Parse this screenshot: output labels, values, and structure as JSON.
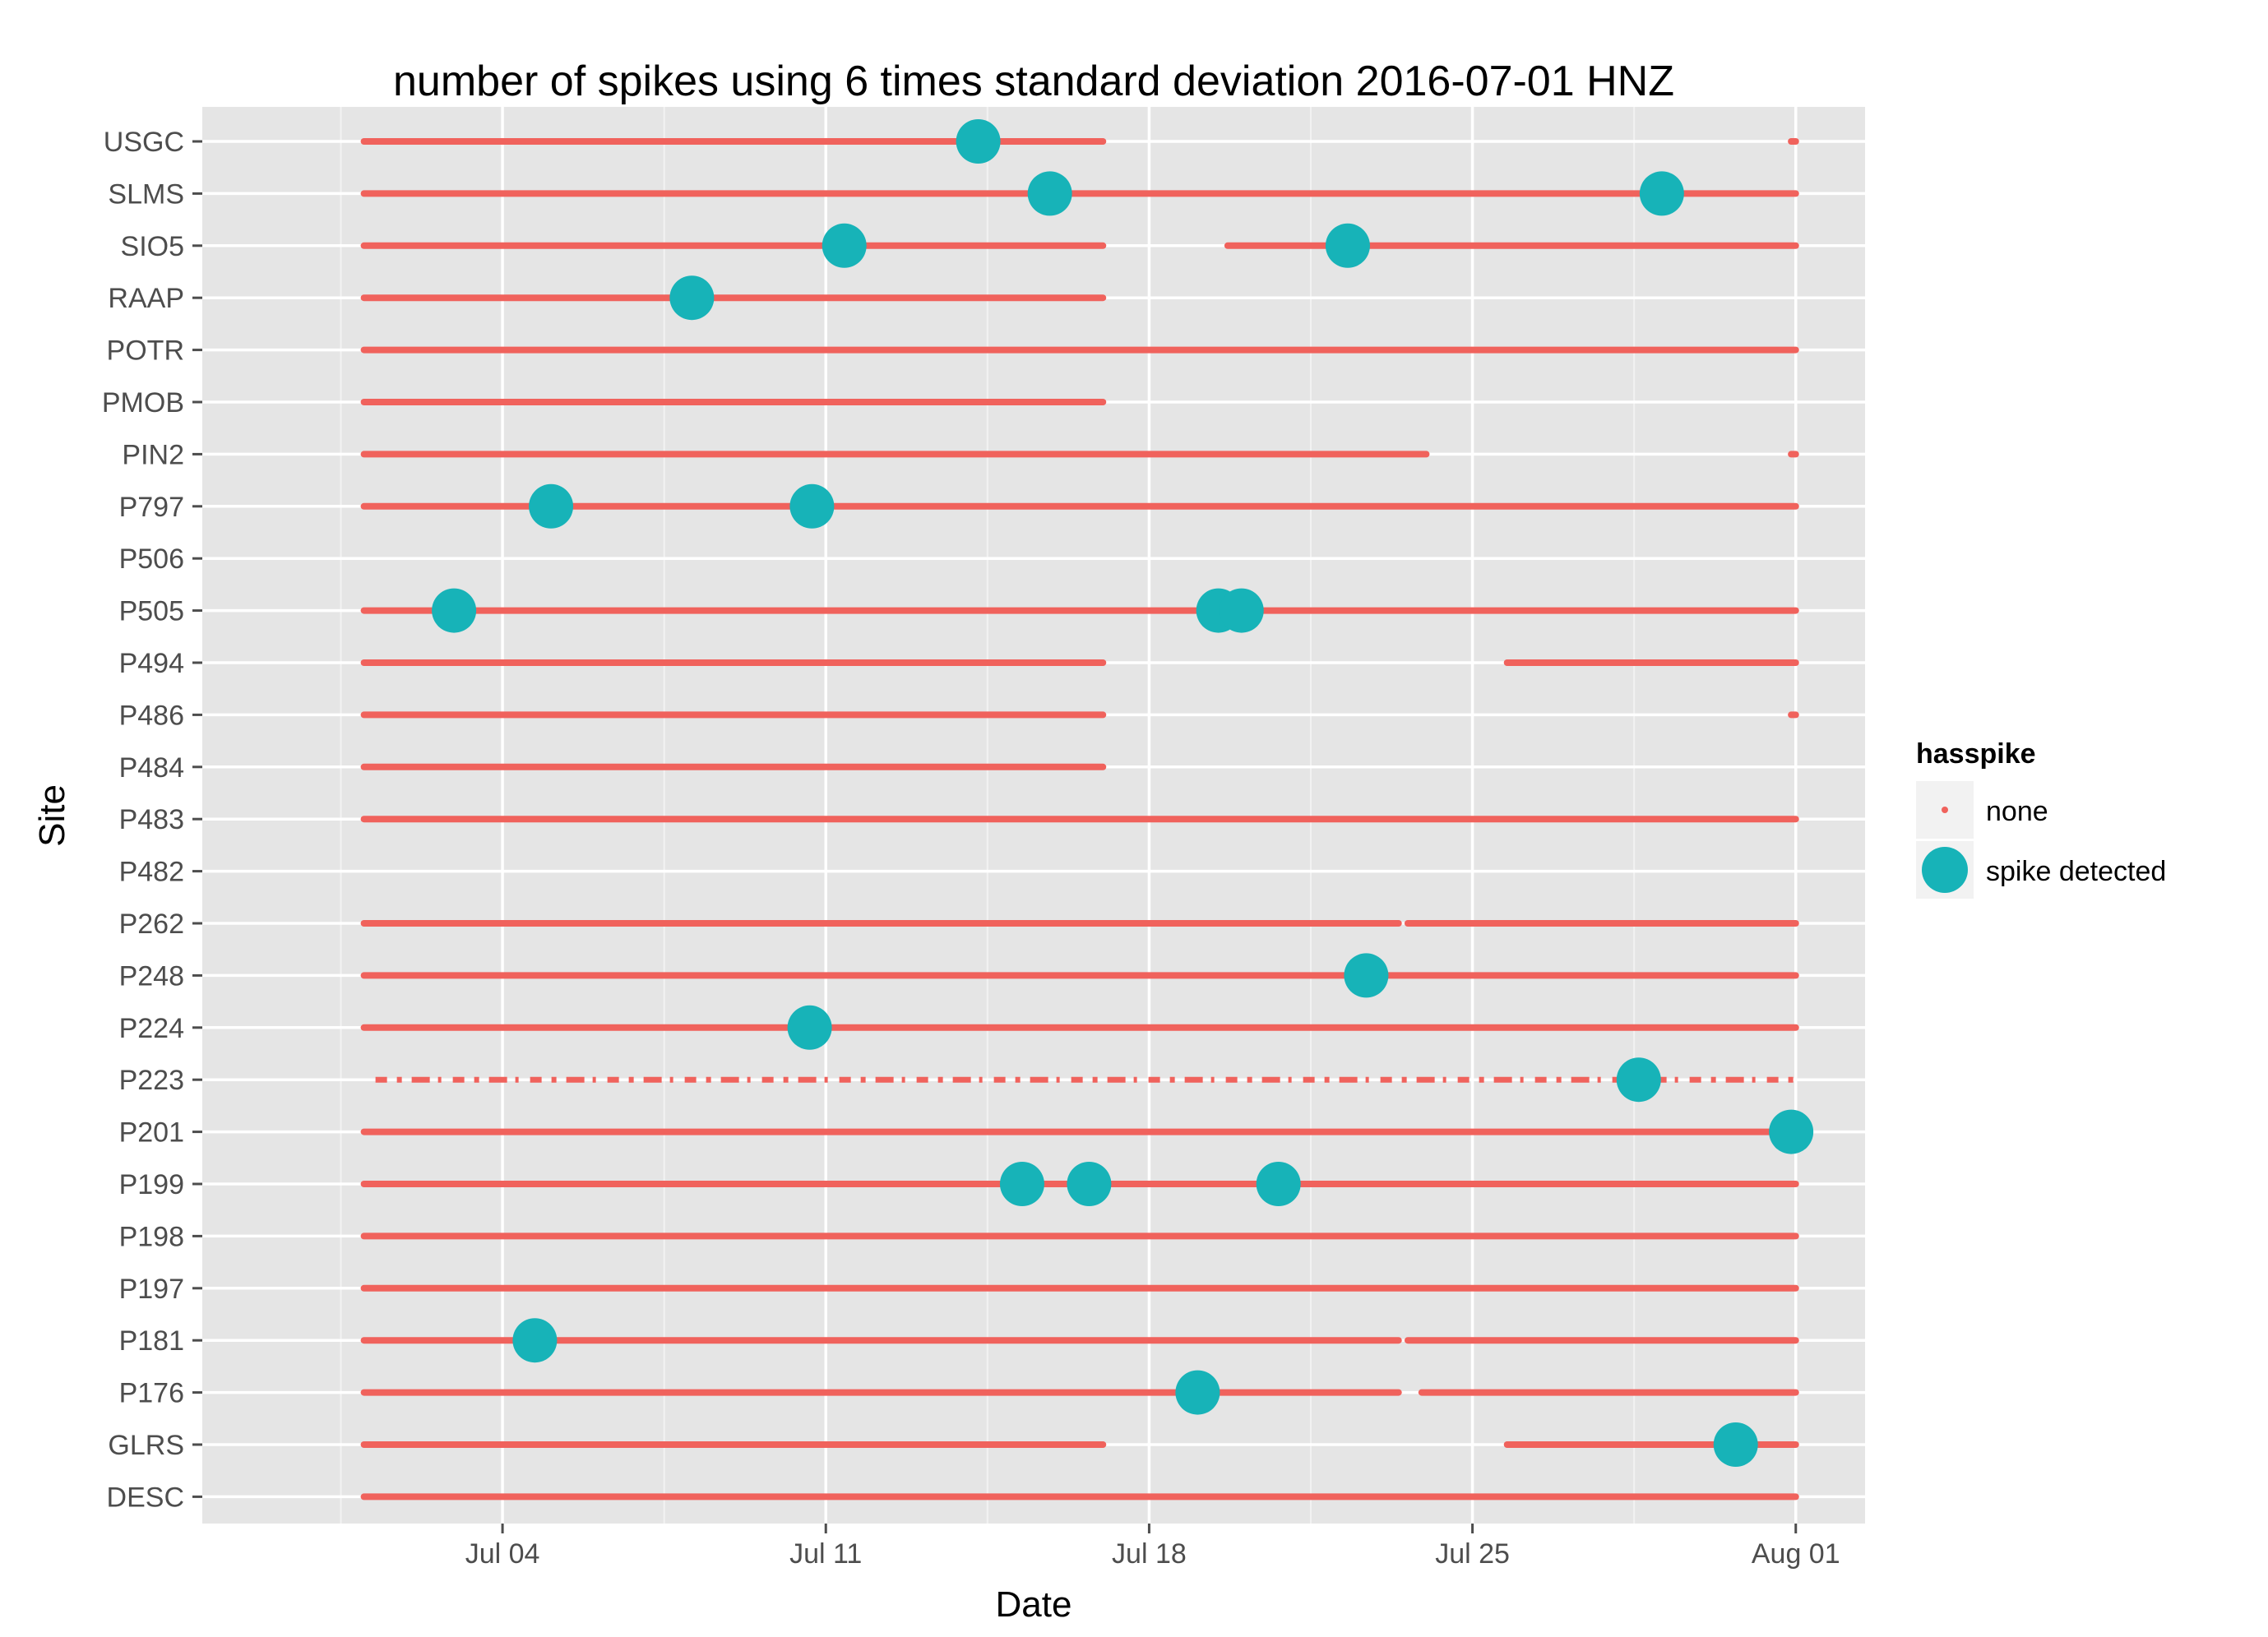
{
  "chart_data": {
    "type": "scatter",
    "title": "number of spikes using  6 times standard deviation 2016-07-01 HNZ",
    "xlabel": "Date",
    "ylabel": "Site",
    "xlim": [
      -3.5,
      32.5
    ],
    "x_unit": "days since 2016-07-01",
    "x_ticks": [
      {
        "value": 3,
        "label": "Jul 04"
      },
      {
        "value": 10,
        "label": "Jul 11"
      },
      {
        "value": 17,
        "label": "Jul 18"
      },
      {
        "value": 24,
        "label": "Jul 25"
      },
      {
        "value": 31,
        "label": "Aug 01"
      }
    ],
    "sites": [
      "USGC",
      "SLMS",
      "SIO5",
      "RAAP",
      "POTR",
      "PMOB",
      "PIN2",
      "P797",
      "P506",
      "P505",
      "P494",
      "P486",
      "P484",
      "P483",
      "P482",
      "P262",
      "P248",
      "P224",
      "P223",
      "P201",
      "P199",
      "P198",
      "P197",
      "P181",
      "P176",
      "GLRS",
      "DESC"
    ],
    "colors": {
      "none": "#f0625c",
      "spike": "#17b3b8",
      "panel": "#e5e5e5",
      "grid_major": "#ffffff",
      "grid_minor": "#f2f2f2"
    },
    "legend": {
      "title": "hasspike",
      "entries": [
        {
          "key": "none",
          "label": "none"
        },
        {
          "key": "spike",
          "label": "spike detected"
        }
      ]
    },
    "series": [
      {
        "name": "none",
        "type": "segments",
        "values": [
          {
            "site": "USGC",
            "segments": [
              [
                0,
                16
              ],
              [
                30.9,
                31
              ]
            ]
          },
          {
            "site": "SLMS",
            "segments": [
              [
                0,
                31
              ]
            ]
          },
          {
            "site": "SIO5",
            "segments": [
              [
                0,
                16
              ],
              [
                18.7,
                31
              ]
            ]
          },
          {
            "site": "RAAP",
            "segments": [
              [
                0,
                16
              ]
            ]
          },
          {
            "site": "POTR",
            "segments": [
              [
                0,
                31
              ]
            ]
          },
          {
            "site": "PMOB",
            "segments": [
              [
                0,
                16
              ]
            ]
          },
          {
            "site": "PIN2",
            "segments": [
              [
                0,
                23
              ],
              [
                30.9,
                31
              ]
            ]
          },
          {
            "site": "P797",
            "segments": [
              [
                0,
                31
              ]
            ]
          },
          {
            "site": "P505",
            "segments": [
              [
                0,
                31
              ]
            ]
          },
          {
            "site": "P494",
            "segments": [
              [
                0,
                16
              ],
              [
                24.75,
                31
              ]
            ]
          },
          {
            "site": "P486",
            "segments": [
              [
                0,
                16
              ],
              [
                30.9,
                31
              ]
            ]
          },
          {
            "site": "P484",
            "segments": [
              [
                0,
                16
              ]
            ]
          },
          {
            "site": "P483",
            "segments": [
              [
                0,
                31
              ]
            ]
          },
          {
            "site": "P262",
            "segments": [
              [
                0,
                22.4
              ],
              [
                22.6,
                31
              ]
            ]
          },
          {
            "site": "P248",
            "segments": [
              [
                0,
                31
              ]
            ]
          },
          {
            "site": "P224",
            "segments": [
              [
                0,
                31
              ]
            ]
          },
          {
            "site": "P223",
            "segments": [
              [
                0.25,
                31
              ]
            ],
            "dashed": true
          },
          {
            "site": "P201",
            "segments": [
              [
                0,
                31
              ]
            ]
          },
          {
            "site": "P199",
            "segments": [
              [
                0,
                31
              ]
            ]
          },
          {
            "site": "P198",
            "segments": [
              [
                0,
                31
              ]
            ]
          },
          {
            "site": "P197",
            "segments": [
              [
                0,
                31
              ]
            ]
          },
          {
            "site": "P181",
            "segments": [
              [
                0,
                22.4
              ],
              [
                22.6,
                31
              ]
            ]
          },
          {
            "site": "P176",
            "segments": [
              [
                0,
                22.4
              ],
              [
                22.9,
                31
              ]
            ]
          },
          {
            "site": "GLRS",
            "segments": [
              [
                0,
                16
              ],
              [
                24.75,
                31
              ]
            ]
          },
          {
            "site": "DESC",
            "segments": [
              [
                0,
                31
              ]
            ]
          }
        ]
      },
      {
        "name": "spike detected",
        "type": "points",
        "values": [
          {
            "site": "USGC",
            "x": 13.3
          },
          {
            "site": "SLMS",
            "x": 14.85
          },
          {
            "site": "SLMS",
            "x": 28.1
          },
          {
            "site": "SIO5",
            "x": 10.4
          },
          {
            "site": "SIO5",
            "x": 21.3
          },
          {
            "site": "RAAP",
            "x": 7.1
          },
          {
            "site": "P797",
            "x": 4.05
          },
          {
            "site": "P797",
            "x": 9.7
          },
          {
            "site": "P505",
            "x": 1.95
          },
          {
            "site": "P505",
            "x": 18.5
          },
          {
            "site": "P505",
            "x": 19.0
          },
          {
            "site": "P248",
            "x": 21.7
          },
          {
            "site": "P224",
            "x": 9.65
          },
          {
            "site": "P223",
            "x": 27.6
          },
          {
            "site": "P201",
            "x": 30.9
          },
          {
            "site": "P199",
            "x": 14.25
          },
          {
            "site": "P199",
            "x": 15.7
          },
          {
            "site": "P199",
            "x": 19.8
          },
          {
            "site": "P181",
            "x": 3.7
          },
          {
            "site": "P176",
            "x": 18.05
          },
          {
            "site": "GLRS",
            "x": 29.7
          }
        ]
      }
    ]
  }
}
